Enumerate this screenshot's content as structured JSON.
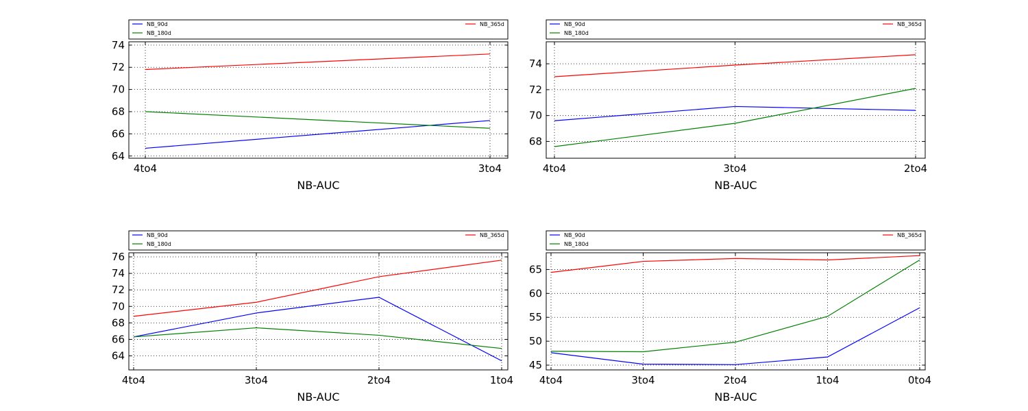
{
  "chart_data": [
    {
      "type": "line",
      "xlabel": "NB-AUC",
      "ylabel": "",
      "categories": [
        "4to4",
        "3to4"
      ],
      "ylim": [
        63.8,
        74.3
      ],
      "yticks": [
        64,
        66,
        68,
        70,
        72,
        74
      ],
      "grid": true,
      "legend_placement": "above-plot",
      "series": [
        {
          "name": "NB_90d",
          "color": "#0000ff",
          "values": [
            64.7,
            67.2
          ]
        },
        {
          "name": "NB_180d",
          "color": "#008000",
          "values": [
            68.0,
            66.5
          ]
        },
        {
          "name": "NB_365d",
          "color": "#ff0000",
          "values": [
            71.8,
            73.2
          ]
        }
      ]
    },
    {
      "type": "line",
      "xlabel": "NB-AUC",
      "ylabel": "",
      "categories": [
        "4to4",
        "3to4",
        "2to4"
      ],
      "ylim": [
        66.7,
        75.7
      ],
      "yticks": [
        68,
        70,
        72,
        74
      ],
      "grid": true,
      "legend_placement": "above-plot",
      "series": [
        {
          "name": "NB_90d",
          "color": "#0000ff",
          "values": [
            69.6,
            70.7,
            70.4
          ]
        },
        {
          "name": "NB_180d",
          "color": "#008000",
          "values": [
            67.6,
            69.4,
            72.1
          ]
        },
        {
          "name": "NB_365d",
          "color": "#ff0000",
          "values": [
            73.0,
            73.9,
            74.7
          ]
        }
      ]
    },
    {
      "type": "line",
      "xlabel": "NB-AUC",
      "ylabel": "",
      "categories": [
        "4to4",
        "3to4",
        "2to4",
        "1to4"
      ],
      "ylim": [
        62.3,
        76.5
      ],
      "yticks": [
        64,
        66,
        68,
        70,
        72,
        74,
        76
      ],
      "grid": true,
      "legend_placement": "above-plot",
      "series": [
        {
          "name": "NB_90d",
          "color": "#0000ff",
          "values": [
            66.3,
            69.2,
            71.1,
            63.4
          ]
        },
        {
          "name": "NB_180d",
          "color": "#008000",
          "values": [
            66.3,
            67.4,
            66.5,
            64.9
          ]
        },
        {
          "name": "NB_365d",
          "color": "#ff0000",
          "values": [
            68.8,
            70.5,
            73.6,
            75.6
          ]
        }
      ]
    },
    {
      "type": "line",
      "xlabel": "NB-AUC",
      "ylabel": "",
      "categories": [
        "4to4",
        "3to4",
        "2to4",
        "1to4",
        "0to4"
      ],
      "ylim": [
        44.0,
        68.5
      ],
      "yticks": [
        45,
        50,
        55,
        60,
        65
      ],
      "grid": true,
      "legend_placement": "above-plot",
      "series": [
        {
          "name": "NB_90d",
          "color": "#0000ff",
          "values": [
            47.6,
            45.2,
            45.1,
            46.7,
            57.0
          ]
        },
        {
          "name": "NB_180d",
          "color": "#008000",
          "values": [
            47.9,
            47.8,
            49.8,
            55.2,
            67.0
          ]
        },
        {
          "name": "NB_365d",
          "color": "#ff0000",
          "values": [
            64.4,
            66.7,
            67.3,
            67.0,
            67.9
          ]
        }
      ]
    }
  ]
}
